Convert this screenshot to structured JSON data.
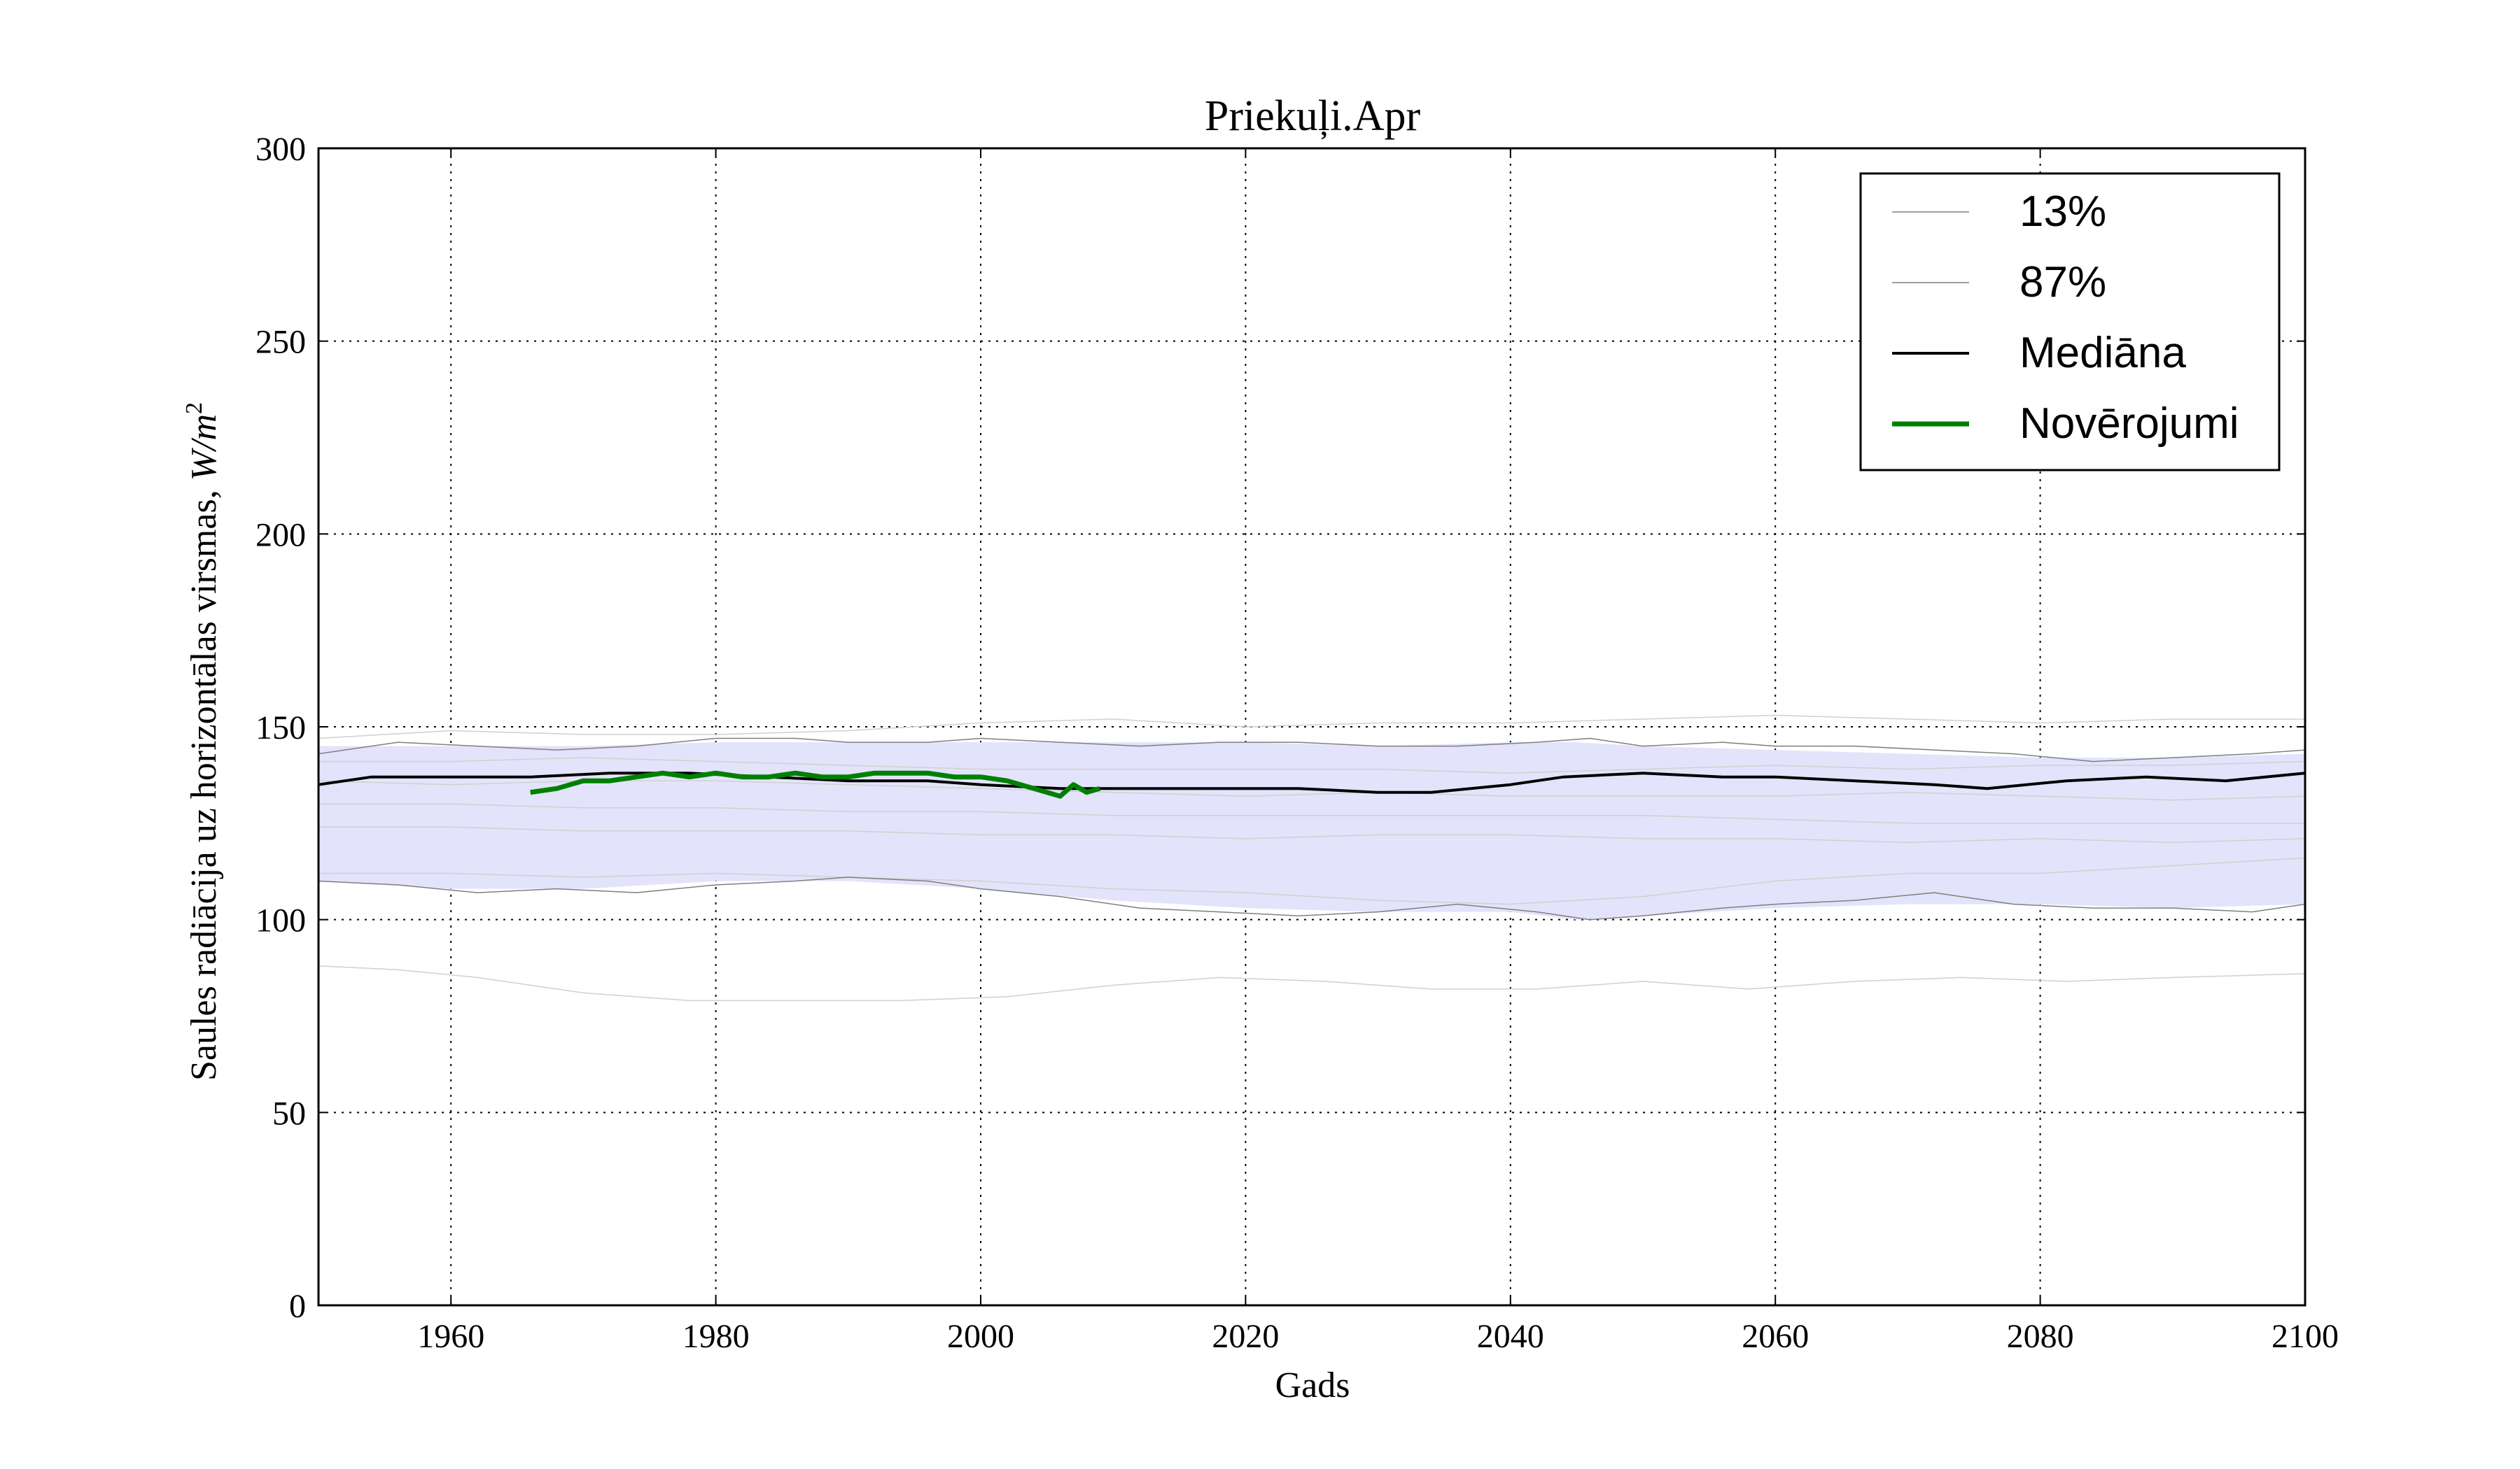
{
  "chart_data": {
    "type": "line",
    "title": "Priekuļi.Apr",
    "xlabel": "Gads",
    "ylabel": "Saules radiācija uz horizontālas virsmas, W/m²",
    "ylabel_text": "Saules radiācija uz horizontālas virsmas, ",
    "ylabel_unit": "W/m",
    "ylabel_unit_sup": "2",
    "xlim": [
      1950,
      2100
    ],
    "ylim": [
      0,
      300
    ],
    "xticks": [
      1960,
      1980,
      2000,
      2020,
      2040,
      2060,
      2080,
      2100
    ],
    "yticks": [
      0,
      50,
      100,
      150,
      200,
      250,
      300
    ],
    "grid": true,
    "legend_position": "top-right",
    "band": {
      "color": "#e3e3fb",
      "x": [
        1950,
        1960,
        1970,
        1980,
        1990,
        2000,
        2010,
        2020,
        2030,
        2040,
        2045,
        2050,
        2060,
        2070,
        2080,
        2090,
        2100
      ],
      "lower": [
        110,
        108,
        108,
        110,
        110,
        108,
        105,
        103,
        102,
        102,
        100,
        101,
        103,
        104,
        104,
        103,
        104
      ],
      "upper": [
        145,
        145,
        145,
        146,
        146,
        146,
        146,
        146,
        145,
        146,
        146,
        145,
        144,
        143,
        142,
        142,
        143
      ]
    },
    "series": [
      {
        "name": "13%",
        "role": "legend",
        "color": "#7f7f7f",
        "width": 1.5,
        "x": [
          1950,
          1956,
          1962,
          1968,
          1974,
          1980,
          1986,
          1990,
          1996,
          2000,
          2006,
          2012,
          2018,
          2024,
          2030,
          2036,
          2042,
          2046,
          2050,
          2056,
          2060,
          2066,
          2072,
          2078,
          2084,
          2090,
          2096,
          2100
        ],
        "y": [
          110,
          109,
          107,
          108,
          107,
          109,
          110,
          111,
          110,
          108,
          106,
          103,
          102,
          101,
          102,
          104,
          102,
          100,
          101,
          103,
          104,
          105,
          107,
          104,
          103,
          103,
          102,
          104
        ]
      },
      {
        "name": "87%",
        "role": "legend",
        "color": "#7f7f7f",
        "width": 1.5,
        "x": [
          1950,
          1956,
          1962,
          1968,
          1974,
          1980,
          1986,
          1990,
          1996,
          2000,
          2006,
          2012,
          2018,
          2024,
          2030,
          2036,
          2042,
          2046,
          2050,
          2056,
          2060,
          2066,
          2072,
          2078,
          2084,
          2090,
          2096,
          2100
        ],
        "y": [
          143,
          146,
          145,
          144,
          145,
          147,
          147,
          146,
          146,
          147,
          146,
          145,
          146,
          146,
          145,
          145,
          146,
          147,
          145,
          146,
          145,
          145,
          144,
          143,
          141,
          142,
          143,
          144
        ]
      },
      {
        "name": "Mediāna",
        "role": "legend",
        "color": "#000000",
        "width": 4,
        "x": [
          1950,
          1954,
          1960,
          1966,
          1972,
          1978,
          1984,
          1990,
          1996,
          2000,
          2006,
          2012,
          2018,
          2024,
          2030,
          2034,
          2040,
          2044,
          2050,
          2056,
          2060,
          2066,
          2072,
          2076,
          2082,
          2088,
          2094,
          2100
        ],
        "y": [
          135,
          137,
          137,
          137,
          138,
          138,
          137,
          136,
          136,
          135,
          134,
          134,
          134,
          134,
          133,
          133,
          135,
          137,
          138,
          137,
          137,
          136,
          135,
          134,
          136,
          137,
          136,
          138
        ]
      },
      {
        "name": "Novērojumi",
        "role": "legend",
        "color": "#008000",
        "width": 7,
        "x": [
          1966,
          1968,
          1970,
          1972,
          1974,
          1976,
          1978,
          1980,
          1982,
          1984,
          1986,
          1988,
          1990,
          1992,
          1994,
          1996,
          1998,
          2000,
          2002,
          2004,
          2006,
          2007,
          2008,
          2009
        ],
        "y": [
          133,
          134,
          136,
          136,
          137,
          138,
          137,
          138,
          137,
          137,
          138,
          137,
          137,
          138,
          138,
          138,
          137,
          137,
          136,
          134,
          132,
          135,
          133,
          134
        ]
      },
      {
        "role": "background",
        "color": "#d0d0d0",
        "width": 1.5,
        "x": [
          1950,
          1956,
          1962,
          1970,
          1978,
          1986,
          1994,
          2002,
          2010,
          2018,
          2026,
          2034,
          2042,
          2050,
          2058,
          2066,
          2074,
          2082,
          2090,
          2100
        ],
        "y": [
          88,
          87,
          85,
          81,
          79,
          79,
          79,
          80,
          83,
          85,
          84,
          82,
          82,
          84,
          82,
          84,
          85,
          84,
          85,
          86
        ]
      },
      {
        "role": "background",
        "color": "#d0d0d0",
        "width": 1.5,
        "x": [
          1950,
          1960,
          1970,
          1980,
          1990,
          2000,
          2010,
          2020,
          2030,
          2040,
          2050,
          2060,
          2070,
          2080,
          2090,
          2100
        ],
        "y": [
          147,
          149,
          148,
          148,
          149,
          151,
          152,
          150,
          151,
          151,
          152,
          153,
          152,
          151,
          152,
          152
        ]
      },
      {
        "role": "background",
        "color": "#d0d0d0",
        "width": 1.5,
        "x": [
          1950,
          1960,
          1970,
          1980,
          1990,
          2000,
          2010,
          2020,
          2030,
          2040,
          2050,
          2060,
          2070,
          2080,
          2090,
          2100
        ],
        "y": [
          141,
          141,
          142,
          141,
          140,
          139,
          139,
          139,
          139,
          138,
          139,
          140,
          139,
          140,
          140,
          141
        ]
      },
      {
        "role": "background",
        "color": "#d0d0d0",
        "width": 1.5,
        "x": [
          1950,
          1960,
          1970,
          1980,
          1990,
          2000,
          2010,
          2020,
          2030,
          2040,
          2050,
          2060,
          2070,
          2080,
          2090,
          2100
        ],
        "y": [
          130,
          130,
          129,
          129,
          128,
          128,
          127,
          127,
          127,
          127,
          127,
          126,
          125,
          125,
          125,
          125
        ]
      },
      {
        "role": "background",
        "color": "#d0d0d0",
        "width": 1.5,
        "x": [
          1950,
          1960,
          1970,
          1980,
          1990,
          2000,
          2010,
          2020,
          2030,
          2040,
          2050,
          2060,
          2070,
          2080,
          2090,
          2100
        ],
        "y": [
          124,
          124,
          123,
          123,
          123,
          122,
          122,
          121,
          122,
          122,
          121,
          121,
          120,
          121,
          120,
          121
        ]
      },
      {
        "role": "background",
        "color": "#d0d0d0",
        "width": 1.5,
        "x": [
          1950,
          1960,
          1970,
          1980,
          1990,
          2000,
          2010,
          2020,
          2030,
          2040,
          2050,
          2060,
          2070,
          2080,
          2090,
          2100
        ],
        "y": [
          136,
          135,
          136,
          136,
          135,
          134,
          133,
          132,
          133,
          132,
          132,
          132,
          133,
          132,
          131,
          132
        ]
      },
      {
        "role": "background",
        "color": "#d0d0d0",
        "width": 1.5,
        "x": [
          1950,
          1960,
          1970,
          1980,
          1990,
          2000,
          2010,
          2020,
          2030,
          2040,
          2050,
          2060,
          2070,
          2080,
          2090,
          2100
        ],
        "y": [
          112,
          112,
          111,
          112,
          111,
          110,
          108,
          107,
          105,
          104,
          106,
          110,
          112,
          112,
          114,
          116
        ]
      }
    ]
  }
}
